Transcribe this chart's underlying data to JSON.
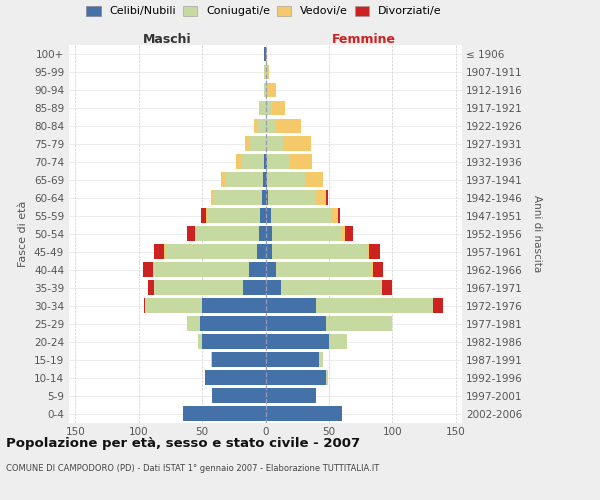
{
  "age_groups": [
    "0-4",
    "5-9",
    "10-14",
    "15-19",
    "20-24",
    "25-29",
    "30-34",
    "35-39",
    "40-44",
    "45-49",
    "50-54",
    "55-59",
    "60-64",
    "65-69",
    "70-74",
    "75-79",
    "80-84",
    "85-89",
    "90-94",
    "95-99",
    "100+"
  ],
  "birth_years": [
    "2002-2006",
    "1997-2001",
    "1992-1996",
    "1987-1991",
    "1982-1986",
    "1977-1981",
    "1972-1976",
    "1967-1971",
    "1962-1966",
    "1957-1961",
    "1952-1956",
    "1947-1951",
    "1942-1946",
    "1937-1941",
    "1932-1936",
    "1927-1931",
    "1922-1926",
    "1917-1921",
    "1912-1916",
    "1907-1911",
    "≤ 1906"
  ],
  "male_celibi": [
    65,
    42,
    48,
    42,
    50,
    52,
    50,
    18,
    13,
    7,
    5,
    4,
    3,
    2,
    1,
    0,
    0,
    0,
    0,
    0,
    1
  ],
  "male_coniugati": [
    0,
    0,
    0,
    1,
    3,
    10,
    45,
    70,
    76,
    72,
    50,
    42,
    38,
    30,
    18,
    12,
    7,
    4,
    1,
    1,
    0
  ],
  "male_vedovi": [
    0,
    0,
    0,
    0,
    0,
    0,
    0,
    0,
    0,
    1,
    1,
    1,
    2,
    3,
    4,
    4,
    2,
    1,
    0,
    0,
    0
  ],
  "male_divorziati": [
    0,
    0,
    0,
    0,
    0,
    0,
    1,
    5,
    8,
    8,
    6,
    4,
    0,
    0,
    0,
    0,
    0,
    0,
    0,
    0,
    0
  ],
  "fem_nubili": [
    60,
    40,
    48,
    42,
    50,
    48,
    40,
    12,
    8,
    5,
    5,
    4,
    2,
    1,
    1,
    0,
    0,
    0,
    0,
    0,
    0
  ],
  "fem_coniugate": [
    0,
    0,
    1,
    3,
    14,
    52,
    92,
    80,
    76,
    75,
    55,
    48,
    38,
    30,
    18,
    14,
    8,
    5,
    2,
    1,
    0
  ],
  "fem_vedove": [
    0,
    0,
    0,
    0,
    0,
    0,
    0,
    0,
    1,
    2,
    3,
    5,
    8,
    14,
    18,
    22,
    20,
    10,
    6,
    2,
    1
  ],
  "fem_divorziate": [
    0,
    0,
    0,
    0,
    0,
    0,
    8,
    8,
    8,
    8,
    6,
    2,
    1,
    0,
    0,
    0,
    0,
    0,
    0,
    0,
    0
  ],
  "colors": {
    "celibi": "#4472a8",
    "coniugati": "#c5d9a0",
    "vedovi": "#f5c96a",
    "divorziati": "#cc2222"
  },
  "xlim": 155,
  "title": "Popolazione per età, sesso e stato civile - 2007",
  "subtitle": "COMUNE DI CAMPODORO (PD) - Dati ISTAT 1° gennaio 2007 - Elaborazione TUTTITALIA.IT",
  "ylabel_left": "Fasce di età",
  "ylabel_right": "Anni di nascita",
  "label_maschi": "Maschi",
  "label_femmine": "Femmine",
  "bg_color": "#eeeeee",
  "plot_bg": "#ffffff",
  "legend_labels": [
    "Celibi/Nubili",
    "Coniugati/e",
    "Vedovi/e",
    "Divorziati/e"
  ]
}
